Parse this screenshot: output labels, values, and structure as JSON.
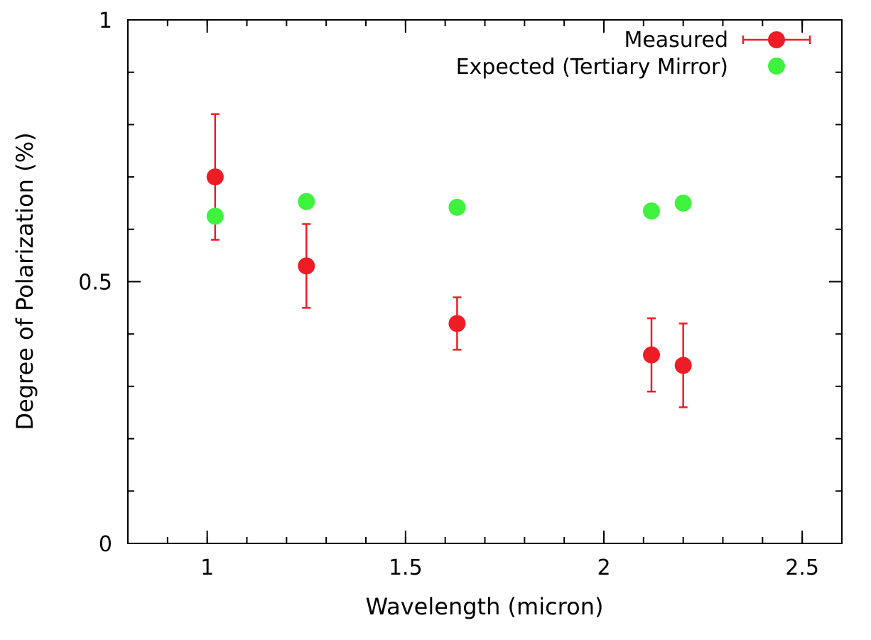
{
  "chart_data": {
    "type": "scatter",
    "title": "",
    "xlabel": "Wavelength (micron)",
    "ylabel": "Degree of Polarization (%)",
    "xlim": [
      0.8,
      2.6
    ],
    "ylim": [
      0,
      1
    ],
    "x_major_ticks": [
      {
        "value": 1,
        "label": "1"
      },
      {
        "value": 1.5,
        "label": "1.5"
      },
      {
        "value": 2,
        "label": "2"
      },
      {
        "value": 2.5,
        "label": "2.5"
      }
    ],
    "x_minor_step": 0.1,
    "y_major_ticks": [
      {
        "value": 0,
        "label": "0"
      },
      {
        "value": 0.5,
        "label": "0.5"
      },
      {
        "value": 1,
        "label": "1"
      }
    ],
    "y_minor_step": 0.1,
    "grid": false,
    "legend_position": "top-right",
    "series": [
      {
        "name": "Measured",
        "color": "#ee1c25",
        "marker": "circle",
        "error_bars": true,
        "points": [
          {
            "x": 1.02,
            "y": 0.7,
            "ylow": 0.58,
            "yhigh": 0.82
          },
          {
            "x": 1.25,
            "y": 0.53,
            "ylow": 0.45,
            "yhigh": 0.61
          },
          {
            "x": 1.63,
            "y": 0.42,
            "ylow": 0.37,
            "yhigh": 0.47
          },
          {
            "x": 2.12,
            "y": 0.36,
            "ylow": 0.29,
            "yhigh": 0.43
          },
          {
            "x": 2.2,
            "y": 0.34,
            "ylow": 0.26,
            "yhigh": 0.42
          }
        ]
      },
      {
        "name": "Expected (Tertiary Mirror)",
        "color": "#3ef23e",
        "marker": "circle",
        "error_bars": false,
        "points": [
          {
            "x": 1.02,
            "y": 0.625
          },
          {
            "x": 1.25,
            "y": 0.653
          },
          {
            "x": 1.63,
            "y": 0.642
          },
          {
            "x": 2.12,
            "y": 0.635
          },
          {
            "x": 2.2,
            "y": 0.65
          }
        ]
      }
    ]
  }
}
